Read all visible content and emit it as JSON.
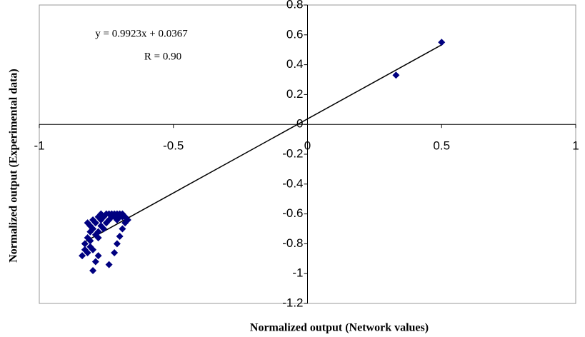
{
  "chart_data": {
    "type": "scatter",
    "x_label": "Normalized output (Network values)",
    "y_label": "Normalized output (Experimental data)",
    "x": [
      -0.84,
      -0.83,
      -0.82,
      -0.82,
      -0.81,
      -0.81,
      -0.8,
      -0.8,
      -0.79,
      -0.79,
      -0.78,
      -0.78,
      -0.77,
      -0.77,
      -0.76,
      -0.76,
      -0.75,
      -0.75,
      -0.74,
      -0.74,
      -0.73,
      -0.73,
      -0.72,
      -0.72,
      -0.71,
      -0.71,
      -0.7,
      -0.7,
      -0.69,
      -0.69,
      -0.68,
      -0.67,
      -0.83,
      -0.82,
      -0.81,
      -0.8,
      -0.79,
      -0.78,
      -0.8,
      -0.78,
      -0.74,
      -0.72,
      -0.71,
      -0.7,
      -0.69,
      -0.68,
      -0.81,
      -0.77,
      0.33,
      0.5
    ],
    "series": [
      {
        "color": "#000080",
        "values": [
          -0.88,
          -0.8,
          -0.76,
          -0.66,
          -0.72,
          -0.82,
          -0.7,
          -0.64,
          -0.74,
          -0.66,
          -0.72,
          -0.62,
          -0.68,
          -0.6,
          -0.7,
          -0.62,
          -0.66,
          -0.6,
          -0.64,
          -0.6,
          -0.62,
          -0.6,
          -0.62,
          -0.6,
          -0.64,
          -0.6,
          -0.62,
          -0.6,
          -0.62,
          -0.6,
          -0.62,
          -0.64,
          -0.84,
          -0.86,
          -0.78,
          -0.98,
          -0.92,
          -0.88,
          -0.84,
          -0.76,
          -0.94,
          -0.86,
          -0.8,
          -0.75,
          -0.7,
          -0.66,
          -0.68,
          -0.64,
          0.33,
          0.55
        ]
      }
    ],
    "trendline": {
      "equation": "y = 0.9923x + 0.0367",
      "slope": 0.9923,
      "intercept": 0.0367,
      "r_label": "R = 0.90",
      "color": "#000000"
    },
    "xlim": [
      -1,
      1
    ],
    "xticks": [
      -1,
      -0.5,
      0,
      0.5,
      1
    ],
    "ylim": [
      -1.2,
      0.8
    ],
    "yticks": [
      0.8,
      0.6,
      0.4,
      0.2,
      0,
      -0.2,
      -0.4,
      -0.6,
      -0.8,
      -1,
      -1.2
    ]
  }
}
